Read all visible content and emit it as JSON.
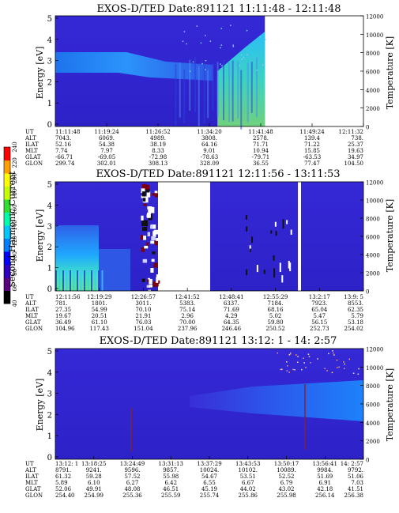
{
  "chart_data": {
    "type": "heatmap",
    "scale_bar": {
      "label": "Second Harmonic Current",
      "ticks": [
        "40",
        "60",
        "80",
        "100",
        "120",
        "140",
        "160",
        "180",
        "200",
        "220",
        "240"
      ],
      "colors": [
        "#000000",
        "#5a0080",
        "#3000c0",
        "#0000ff",
        "#0080ff",
        "#00c8ff",
        "#00ffaa",
        "#30e030",
        "#c8ff00",
        "#ffff00",
        "#ffa000",
        "#ff0000"
      ]
    },
    "panels": [
      {
        "title": "EXOS-D/TED   Date:891121  11:11:48 - 12:11:48",
        "ylabel": "Energy [eV]",
        "y2label": "Temperature [K]",
        "ylim": [
          0,
          5
        ],
        "y2lim": [
          0,
          12000
        ],
        "yticks": [
          "0",
          "1",
          "2",
          "3",
          "4",
          "5"
        ],
        "y2ticks": [
          "0",
          "2000",
          "4000",
          "6000",
          "8000",
          "10000",
          "12000"
        ],
        "data_end_fraction": 0.68,
        "row_labels": [
          "UT",
          "ALT",
          "ILAT",
          "MLT",
          "GLAT",
          "GLON"
        ],
        "columns": [
          [
            "11:11:48",
            "7043.",
            "52.16",
            "7.74",
            "-66.71",
            "299.74"
          ],
          [
            "11:19:24",
            "6069.",
            "54.38",
            "7.97",
            "-69.05",
            "302.01"
          ],
          [
            "11:26:52",
            "4989.",
            "38.19",
            "8.33",
            "-72.98",
            "308.13"
          ],
          [
            "11:34:20",
            "3808.",
            "64.16",
            "9.01",
            "-78.63",
            "328.09"
          ],
          [
            "11:41:48",
            "2578.",
            "71.71",
            "10.94",
            "-79.71",
            "36.55"
          ],
          [
            "11:49:24",
            "139.4",
            "71.22",
            "15.85",
            "-63.53",
            "77.47"
          ],
          [
            "12:11:32",
            "738.",
            "25.37",
            "19.63",
            "34.97",
            "104.50"
          ]
        ]
      },
      {
        "title": "EXOS-D/TED   Date:891121  12:11:56 - 13:11:53",
        "ylabel": "Energy [eV]",
        "y2label": "Temperature [K]",
        "ylim": [
          0,
          5
        ],
        "y2lim": [
          0,
          12000
        ],
        "yticks": [
          "0",
          "1",
          "2",
          "3",
          "4",
          "5"
        ],
        "y2ticks": [
          "0",
          "2000",
          "4000",
          "6000",
          "8000",
          "10000",
          "12000"
        ],
        "row_labels": [
          "UT",
          "ALT",
          "ILAT",
          "MLT",
          "GLAT",
          "GLON"
        ],
        "columns": [
          [
            "12:11:56",
            "781.",
            "27.35",
            "19.67",
            "36.49",
            "104.96"
          ],
          [
            "12:19:29",
            "1801.",
            "54.99",
            "20.51",
            "61.10",
            "117.43"
          ],
          [
            "12:26:57",
            "3011.",
            "70.10",
            "21.91",
            "76.03",
            "151.04"
          ],
          [
            "12:41:52",
            "5383.",
            "75.14",
            "2.96",
            "70.00",
            "237.96"
          ],
          [
            "12:48:41",
            "6337.",
            "71.69",
            "4.29",
            "64.35",
            "246.46"
          ],
          [
            "12:55:29",
            "7184.",
            "68.16",
            "5.02",
            "59.80",
            "250.52"
          ],
          [
            "13:2:17",
            "7923.",
            "65.04",
            "5.47",
            "56.15",
            "252.73"
          ],
          [
            "13:9: 5",
            "8553.",
            "62.35",
            "5.79",
            "53.18",
            "254.02"
          ]
        ]
      },
      {
        "title": "EXOS-D/TED   Date:891121  13:12: 1 - 14: 2:57",
        "ylabel": "Energy [eV]",
        "y2label": "Temperature [K]",
        "ylim": [
          0,
          5
        ],
        "y2lim": [
          0,
          12000
        ],
        "yticks": [
          "0",
          "1",
          "2",
          "3",
          "4",
          "5"
        ],
        "y2ticks": [
          "0",
          "2000",
          "4000",
          "6000",
          "8000",
          "10000",
          "12000"
        ],
        "row_labels": [
          "UT",
          "ALT",
          "ILAT",
          "MLT",
          "GLAT",
          "GLON"
        ],
        "columns": [
          [
            "13:12: 1",
            "8791.",
            "61.32",
            "5.89",
            "52.06",
            "254.40"
          ],
          [
            "13:18:25",
            "9241.",
            "59.28",
            "6.10",
            "49.91",
            "254.99"
          ],
          [
            "13:24:49",
            "9596.",
            "57.52",
            "6.27",
            "48.08",
            "255.36"
          ],
          [
            "13:31:13",
            "9857.",
            "55.98",
            "6.42",
            "46.51",
            "255.59"
          ],
          [
            "13:37:29",
            "10024.",
            "54.67",
            "6.55",
            "45.19",
            "255.74"
          ],
          [
            "13:43:53",
            "10102.",
            "53.51",
            "6.67",
            "44.02",
            "255.86"
          ],
          [
            "13:50:17",
            "10089.",
            "52.52",
            "6.79",
            "43.02",
            "255.98"
          ],
          [
            "13:56:41",
            "9984.",
            "51.69",
            "6.91",
            "42.18",
            "256.14"
          ],
          [
            "14: 2:57",
            "9792.",
            "51.06",
            "7.03",
            "41.51",
            "256.38"
          ]
        ]
      }
    ]
  }
}
